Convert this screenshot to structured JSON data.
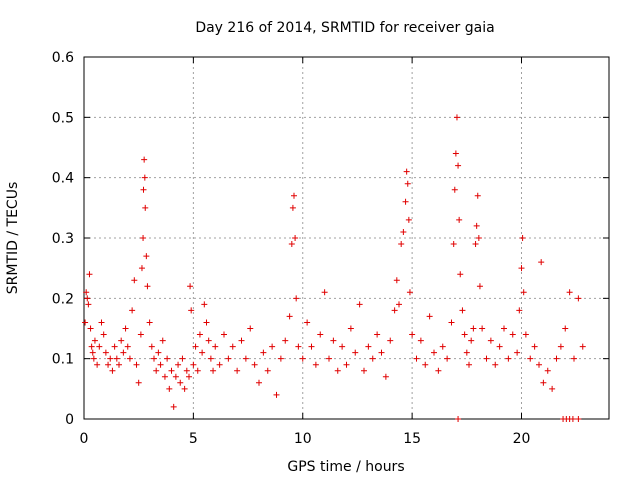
{
  "chart_data": {
    "type": "scatter",
    "title": "Day 216 of 2014, SRMTID for receiver gaia",
    "xlabel": "GPS time / hours",
    "ylabel": "SRMTID / TECUs",
    "xlim": [
      0,
      24
    ],
    "ylim": [
      0,
      0.6
    ],
    "xticks": [
      0,
      5,
      10,
      15,
      20
    ],
    "xtick_labels": [
      "0",
      "5",
      "10",
      "15",
      "20"
    ],
    "yticks": [
      0,
      0.1,
      0.2,
      0.3,
      0.4,
      0.5,
      0.6
    ],
    "ytick_labels": [
      "0",
      "0.1",
      "0.2",
      "0.3",
      "0.4",
      "0.5",
      "0.6"
    ],
    "grid": true,
    "marker": "+",
    "marker_color": "#e00000",
    "series": [
      {
        "name": "SRMTID",
        "points": [
          [
            0.05,
            0.16
          ],
          [
            0.1,
            0.21
          ],
          [
            0.15,
            0.2
          ],
          [
            0.2,
            0.19
          ],
          [
            0.25,
            0.24
          ],
          [
            0.3,
            0.15
          ],
          [
            0.35,
            0.12
          ],
          [
            0.4,
            0.11
          ],
          [
            0.45,
            0.1
          ],
          [
            0.5,
            0.13
          ],
          [
            0.6,
            0.09
          ],
          [
            0.7,
            0.12
          ],
          [
            0.8,
            0.16
          ],
          [
            0.9,
            0.14
          ],
          [
            1.0,
            0.11
          ],
          [
            1.1,
            0.09
          ],
          [
            1.2,
            0.1
          ],
          [
            1.3,
            0.08
          ],
          [
            1.4,
            0.12
          ],
          [
            1.5,
            0.1
          ],
          [
            1.6,
            0.09
          ],
          [
            1.7,
            0.13
          ],
          [
            1.8,
            0.11
          ],
          [
            1.9,
            0.15
          ],
          [
            2.0,
            0.12
          ],
          [
            2.1,
            0.1
          ],
          [
            2.2,
            0.18
          ],
          [
            2.3,
            0.23
          ],
          [
            2.4,
            0.09
          ],
          [
            2.5,
            0.06
          ],
          [
            2.6,
            0.14
          ],
          [
            2.65,
            0.25
          ],
          [
            2.7,
            0.3
          ],
          [
            2.72,
            0.38
          ],
          [
            2.75,
            0.43
          ],
          [
            2.78,
            0.4
          ],
          [
            2.8,
            0.35
          ],
          [
            2.85,
            0.27
          ],
          [
            2.9,
            0.22
          ],
          [
            3.0,
            0.16
          ],
          [
            3.1,
            0.12
          ],
          [
            3.2,
            0.1
          ],
          [
            3.3,
            0.08
          ],
          [
            3.4,
            0.11
          ],
          [
            3.5,
            0.09
          ],
          [
            3.6,
            0.13
          ],
          [
            3.7,
            0.07
          ],
          [
            3.8,
            0.1
          ],
          [
            3.9,
            0.05
          ],
          [
            4.0,
            0.08
          ],
          [
            4.1,
            0.02
          ],
          [
            4.2,
            0.07
          ],
          [
            4.3,
            0.09
          ],
          [
            4.4,
            0.06
          ],
          [
            4.5,
            0.1
          ],
          [
            4.6,
            0.05
          ],
          [
            4.7,
            0.08
          ],
          [
            4.8,
            0.07
          ],
          [
            4.85,
            0.22
          ],
          [
            4.9,
            0.18
          ],
          [
            5.0,
            0.09
          ],
          [
            5.1,
            0.12
          ],
          [
            5.2,
            0.08
          ],
          [
            5.3,
            0.14
          ],
          [
            5.4,
            0.11
          ],
          [
            5.5,
            0.19
          ],
          [
            5.6,
            0.16
          ],
          [
            5.7,
            0.13
          ],
          [
            5.8,
            0.1
          ],
          [
            5.9,
            0.08
          ],
          [
            6.0,
            0.12
          ],
          [
            6.2,
            0.09
          ],
          [
            6.4,
            0.14
          ],
          [
            6.6,
            0.1
          ],
          [
            6.8,
            0.12
          ],
          [
            7.0,
            0.08
          ],
          [
            7.2,
            0.13
          ],
          [
            7.4,
            0.1
          ],
          [
            7.6,
            0.15
          ],
          [
            7.8,
            0.09
          ],
          [
            8.0,
            0.06
          ],
          [
            8.2,
            0.11
          ],
          [
            8.4,
            0.08
          ],
          [
            8.6,
            0.12
          ],
          [
            8.8,
            0.04
          ],
          [
            9.0,
            0.1
          ],
          [
            9.2,
            0.13
          ],
          [
            9.4,
            0.17
          ],
          [
            9.5,
            0.29
          ],
          [
            9.55,
            0.35
          ],
          [
            9.6,
            0.37
          ],
          [
            9.65,
            0.3
          ],
          [
            9.7,
            0.2
          ],
          [
            9.8,
            0.12
          ],
          [
            10.0,
            0.1
          ],
          [
            10.2,
            0.16
          ],
          [
            10.4,
            0.12
          ],
          [
            10.6,
            0.09
          ],
          [
            10.8,
            0.14
          ],
          [
            11.0,
            0.21
          ],
          [
            11.2,
            0.1
          ],
          [
            11.4,
            0.13
          ],
          [
            11.6,
            0.08
          ],
          [
            11.8,
            0.12
          ],
          [
            12.0,
            0.09
          ],
          [
            12.2,
            0.15
          ],
          [
            12.4,
            0.11
          ],
          [
            12.6,
            0.19
          ],
          [
            12.8,
            0.08
          ],
          [
            13.0,
            0.12
          ],
          [
            13.2,
            0.1
          ],
          [
            13.4,
            0.14
          ],
          [
            13.6,
            0.11
          ],
          [
            13.8,
            0.07
          ],
          [
            14.0,
            0.13
          ],
          [
            14.2,
            0.18
          ],
          [
            14.3,
            0.23
          ],
          [
            14.4,
            0.19
          ],
          [
            14.5,
            0.29
          ],
          [
            14.6,
            0.31
          ],
          [
            14.7,
            0.36
          ],
          [
            14.75,
            0.41
          ],
          [
            14.8,
            0.39
          ],
          [
            14.85,
            0.33
          ],
          [
            14.9,
            0.21
          ],
          [
            15.0,
            0.14
          ],
          [
            15.2,
            0.1
          ],
          [
            15.4,
            0.13
          ],
          [
            15.6,
            0.09
          ],
          [
            15.8,
            0.17
          ],
          [
            16.0,
            0.11
          ],
          [
            16.2,
            0.08
          ],
          [
            16.4,
            0.12
          ],
          [
            16.6,
            0.1
          ],
          [
            16.8,
            0.16
          ],
          [
            16.9,
            0.29
          ],
          [
            16.95,
            0.38
          ],
          [
            17.0,
            0.44
          ],
          [
            17.05,
            0.5
          ],
          [
            17.1,
            0.42
          ],
          [
            17.15,
            0.33
          ],
          [
            17.2,
            0.24
          ],
          [
            17.3,
            0.18
          ],
          [
            17.4,
            0.14
          ],
          [
            17.5,
            0.11
          ],
          [
            17.6,
            0.09
          ],
          [
            17.7,
            0.13
          ],
          [
            17.8,
            0.15
          ],
          [
            17.9,
            0.29
          ],
          [
            17.95,
            0.32
          ],
          [
            18.0,
            0.37
          ],
          [
            18.05,
            0.3
          ],
          [
            18.1,
            0.22
          ],
          [
            18.2,
            0.15
          ],
          [
            18.4,
            0.1
          ],
          [
            18.6,
            0.13
          ],
          [
            18.8,
            0.09
          ],
          [
            19.0,
            0.12
          ],
          [
            19.2,
            0.15
          ],
          [
            19.4,
            0.1
          ],
          [
            19.6,
            0.14
          ],
          [
            19.8,
            0.11
          ],
          [
            19.9,
            0.18
          ],
          [
            20.0,
            0.25
          ],
          [
            20.05,
            0.3
          ],
          [
            20.1,
            0.21
          ],
          [
            20.2,
            0.14
          ],
          [
            20.4,
            0.1
          ],
          [
            20.6,
            0.12
          ],
          [
            20.8,
            0.09
          ],
          [
            20.9,
            0.26
          ],
          [
            21.0,
            0.06
          ],
          [
            21.2,
            0.08
          ],
          [
            21.4,
            0.05
          ],
          [
            21.6,
            0.1
          ],
          [
            21.8,
            0.12
          ],
          [
            22.0,
            0.15
          ],
          [
            22.2,
            0.21
          ],
          [
            22.4,
            0.1
          ],
          [
            22.6,
            0.2
          ],
          [
            22.8,
            0.12
          ],
          [
            17.1,
            0.0
          ],
          [
            21.9,
            0.0
          ],
          [
            22.05,
            0.0
          ],
          [
            22.2,
            0.0
          ],
          [
            22.35,
            0.0
          ],
          [
            22.6,
            0.0
          ]
        ]
      }
    ]
  }
}
